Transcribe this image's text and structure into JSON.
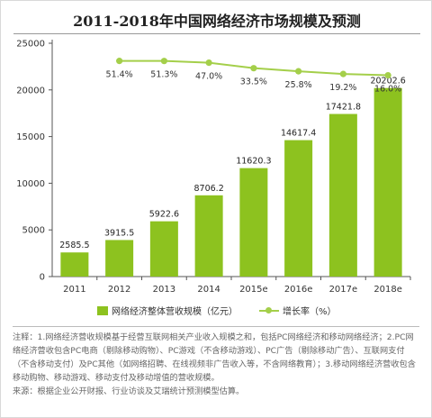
{
  "chart_data": {
    "type": "bar",
    "title": "2011-2018年中国网络经济市场规模及预测",
    "categories": [
      "2011",
      "2012",
      "2013",
      "2014",
      "2015e",
      "2016e",
      "2017e",
      "2018e"
    ],
    "ylim": [
      0,
      25000
    ],
    "yticks": [
      0,
      5000,
      10000,
      15000,
      20000,
      25000
    ],
    "grid": false,
    "legend_position": "bottom",
    "series": [
      {
        "name": "网络经济整体营收规模（亿元）",
        "type": "bar",
        "values": [
          2585.5,
          3915.5,
          5922.6,
          8706.2,
          11620.3,
          14617.4,
          17421.8,
          20202.6
        ],
        "labels": [
          "2585.5",
          "3915.5",
          "5922.6",
          "8706.2",
          "11620.3",
          "14617.4",
          "17421.8",
          "20202.6"
        ]
      },
      {
        "name": "增长率（%）",
        "type": "line",
        "values": [
          null,
          51.4,
          51.3,
          47.0,
          33.5,
          25.8,
          19.2,
          16.0
        ],
        "labels": [
          "",
          "51.4%",
          "51.3%",
          "47.0%",
          "33.5%",
          "25.8%",
          "19.2%",
          "16.0%"
        ]
      }
    ],
    "colors": {
      "bar": "#8dc21f",
      "line": "#a4cf4a",
      "axis": "#555555"
    }
  },
  "notes": {
    "note": "注释：1.网络经济营收规模基于经营互联网相关产业收入规模之和，包括PC网络经济和移动网络经济；2.PC网络经济营收包含PC电商（剔除移动购物）、PC游戏（不含移动游戏）、PC广告（剔除移动广告）、互联网支付（不含移动支付）及PC其他（如网络招聘、在线视频非广告收入等，不含网络教育）；3.移动网络经济营收包含移动购物、移动游戏、移动支付及移动增值的营收规模。",
    "source": "来源：根据企业公开财报、行业访谈及艾瑞统计预测模型估算。"
  }
}
